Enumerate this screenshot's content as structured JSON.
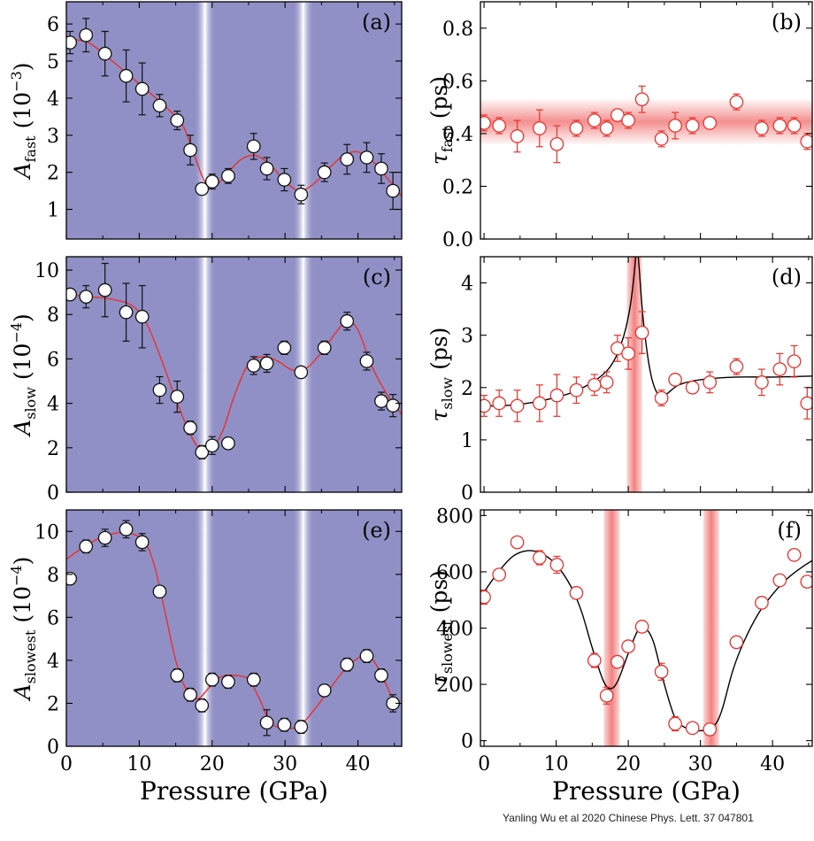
{
  "credit": "Yanling Wu et al 2020 Chinese Phys. Lett. 37 047801",
  "colors": {
    "panel_bg": "#9090c6",
    "stripe_core": "#ffffff",
    "red_line": "#e8312c",
    "red_band": "#f06b6b",
    "marker_edge_left": "#111111",
    "marker_edge_right": "#e8312c",
    "fit_right": "#000000"
  },
  "chart_data": [
    {
      "panel": "(a)",
      "type": "scatter",
      "ylabel_main": "A",
      "ylabel_sub": "fast",
      "ylabel_unit": "(10",
      "ylabel_exp": "−3",
      "ylabel_close": ")",
      "xlim": [
        0,
        46
      ],
      "ylim": [
        0.2,
        6.6
      ],
      "yticks": [
        1,
        2,
        3,
        4,
        5,
        6
      ],
      "xticks": [
        0,
        10,
        20,
        30,
        40
      ],
      "background": "blue",
      "stripes": [
        19.0,
        32.5
      ],
      "x": [
        0.5,
        2.7,
        5.3,
        8.2,
        10.4,
        12.8,
        15.2,
        17.0,
        18.6,
        20.0,
        22.2,
        25.7,
        27.5,
        29.9,
        32.2,
        35.4,
        38.5,
        41.2,
        43.2,
        44.8
      ],
      "y": [
        5.5,
        5.7,
        5.2,
        4.6,
        4.25,
        3.8,
        3.4,
        2.6,
        1.55,
        1.75,
        1.9,
        2.7,
        2.1,
        1.8,
        1.4,
        2.0,
        2.35,
        2.4,
        2.1,
        1.5
      ],
      "err": [
        0.3,
        0.45,
        0.6,
        0.7,
        0.7,
        0.3,
        0.25,
        0.4,
        0.15,
        0.2,
        0.2,
        0.35,
        0.3,
        0.3,
        0.25,
        0.25,
        0.4,
        0.4,
        0.4,
        0.5
      ],
      "fit": {
        "color": "red",
        "x": [
          0,
          3,
          6,
          9,
          12,
          14,
          16,
          17.5,
          19,
          20.5,
          22,
          24,
          26,
          28,
          30,
          32,
          34,
          36,
          38,
          40,
          42,
          44,
          46
        ],
        "y": [
          5.6,
          5.5,
          5.05,
          4.55,
          4.05,
          3.7,
          3.25,
          2.5,
          1.75,
          1.65,
          1.95,
          2.35,
          2.45,
          2.2,
          1.75,
          1.5,
          1.7,
          2.1,
          2.45,
          2.55,
          2.3,
          1.85,
          1.35
        ]
      }
    },
    {
      "panel": "(b)",
      "type": "scatter",
      "ylabel_main": "τ",
      "ylabel_sub": "fast",
      "ylabel_unit": "(ps)",
      "ylabel_exp": "",
      "ylabel_close": "",
      "xlim": [
        -0.5,
        45.5
      ],
      "ylim": [
        0,
        0.9
      ],
      "yticks": [
        0.0,
        0.2,
        0.4,
        0.6,
        0.8
      ],
      "ytick_labels": [
        "0.0",
        "0.2",
        "0.4",
        "0.6",
        "0.8"
      ],
      "xticks": [
        0,
        10,
        20,
        30,
        40
      ],
      "background": "white",
      "hband": [
        0.36,
        0.53
      ],
      "x": [
        0,
        2.1,
        4.6,
        7.7,
        10.1,
        12.8,
        15.3,
        17.0,
        18.5,
        20.0,
        21.9,
        24.6,
        26.5,
        28.9,
        31.3,
        35.0,
        38.5,
        41.0,
        43.0,
        44.8
      ],
      "y": [
        0.44,
        0.43,
        0.39,
        0.42,
        0.36,
        0.42,
        0.45,
        0.42,
        0.47,
        0.45,
        0.53,
        0.38,
        0.43,
        0.43,
        0.44,
        0.52,
        0.42,
        0.43,
        0.43,
        0.37
      ],
      "err": [
        0.03,
        0.03,
        0.06,
        0.07,
        0.07,
        0.03,
        0.03,
        0.03,
        0.02,
        0.03,
        0.05,
        0.03,
        0.05,
        0.03,
        0.02,
        0.03,
        0.03,
        0.03,
        0.03,
        0.03
      ]
    },
    {
      "panel": "(c)",
      "type": "scatter",
      "ylabel_main": "A",
      "ylabel_sub": "slow",
      "ylabel_unit": "(10",
      "ylabel_exp": "−4",
      "ylabel_close": ")",
      "xlim": [
        0,
        46
      ],
      "ylim": [
        0,
        10.6
      ],
      "yticks": [
        0,
        2,
        4,
        6,
        8,
        10
      ],
      "xticks": [
        0,
        10,
        20,
        30,
        40
      ],
      "background": "blue",
      "stripes": [
        19.0,
        32.5
      ],
      "x": [
        0.5,
        2.7,
        5.3,
        8.2,
        10.4,
        12.8,
        15.2,
        17.0,
        18.6,
        20.0,
        22.2,
        25.7,
        27.5,
        29.9,
        32.2,
        35.4,
        38.5,
        41.2,
        43.2,
        44.8
      ],
      "y": [
        8.9,
        8.8,
        9.1,
        8.1,
        7.9,
        4.6,
        4.3,
        2.9,
        1.8,
        2.1,
        2.2,
        5.7,
        5.8,
        6.5,
        5.4,
        6.5,
        7.7,
        5.9,
        4.1,
        3.9
      ],
      "err": [
        0.25,
        0.5,
        1.2,
        1.3,
        1.4,
        0.6,
        0.7,
        0.3,
        0.3,
        0.4,
        0.25,
        0.4,
        0.4,
        0.3,
        0.2,
        0.3,
        0.4,
        0.4,
        0.4,
        0.5
      ],
      "fit": {
        "color": "red",
        "x": [
          0,
          3,
          6,
          9,
          11,
          13,
          15,
          17,
          18.5,
          20,
          21.5,
          23,
          25,
          27,
          29,
          31,
          33,
          35,
          37,
          38.5,
          40,
          42,
          44,
          46
        ],
        "y": [
          8.9,
          8.8,
          8.7,
          8.4,
          7.6,
          6.0,
          4.2,
          2.6,
          1.9,
          2.0,
          2.8,
          4.3,
          5.8,
          6.1,
          5.9,
          5.5,
          5.6,
          6.3,
          7.2,
          7.7,
          7.3,
          5.6,
          4.4,
          3.5
        ]
      }
    },
    {
      "panel": "(d)",
      "type": "scatter",
      "ylabel_main": "τ",
      "ylabel_sub": "slow",
      "ylabel_unit": "(ps)",
      "ylabel_exp": "",
      "ylabel_close": "",
      "xlim": [
        -0.5,
        45.5
      ],
      "ylim": [
        0,
        4.5
      ],
      "yticks": [
        0,
        1,
        2,
        3,
        4
      ],
      "xticks": [
        0,
        10,
        20,
        30,
        40
      ],
      "background": "white",
      "vbands": [
        [
          19.8,
          21.9
        ]
      ],
      "x": [
        0,
        2.1,
        4.6,
        7.7,
        10.1,
        12.8,
        15.3,
        17.0,
        18.5,
        20.0,
        21.9,
        24.6,
        26.5,
        28.9,
        31.3,
        35.0,
        38.5,
        41.0,
        43.0,
        44.8
      ],
      "y": [
        1.65,
        1.7,
        1.65,
        1.7,
        1.85,
        1.95,
        2.05,
        2.1,
        2.75,
        2.65,
        3.05,
        1.8,
        2.15,
        2.0,
        2.1,
        2.4,
        2.1,
        2.35,
        2.5,
        1.7
      ],
      "err": [
        0.2,
        0.25,
        0.3,
        0.35,
        0.4,
        0.25,
        0.2,
        0.2,
        0.25,
        0.3,
        0.4,
        0.15,
        0.1,
        0.1,
        0.2,
        0.15,
        0.25,
        0.3,
        0.3,
        0.3
      ],
      "fit": {
        "color": "black",
        "x": [
          -0.5,
          2,
          5,
          8,
          11,
          13,
          15,
          16.5,
          17.5,
          18.5,
          19.5,
          20.2,
          20.6,
          20.9,
          21.1,
          21.3,
          21.5,
          21.7,
          22.0,
          22.4,
          22.8,
          23.3,
          24,
          25,
          27,
          30,
          35,
          40,
          45.5
        ],
        "y": [
          1.65,
          1.65,
          1.68,
          1.75,
          1.85,
          1.95,
          2.1,
          2.25,
          2.4,
          2.65,
          3.05,
          3.5,
          3.9,
          4.3,
          4.6,
          4.6,
          4.3,
          3.9,
          3.4,
          2.9,
          2.5,
          2.15,
          1.9,
          1.85,
          2.05,
          2.15,
          2.2,
          2.2,
          2.22
        ]
      }
    },
    {
      "panel": "(e)",
      "type": "scatter",
      "ylabel_main": "A",
      "ylabel_sub": "slowest",
      "ylabel_unit": "(10",
      "ylabel_exp": "−4",
      "ylabel_close": ")",
      "xlim": [
        0,
        46
      ],
      "ylim": [
        0,
        11
      ],
      "yticks": [
        0,
        2,
        4,
        6,
        8,
        10
      ],
      "xticks": [
        0,
        10,
        20,
        30,
        40
      ],
      "background": "blue",
      "stripes": [
        19.0,
        32.5
      ],
      "xlabel": "Pressure (GPa)",
      "x": [
        0.5,
        2.7,
        5.3,
        8.2,
        10.4,
        12.8,
        15.2,
        17.0,
        18.6,
        20.0,
        22.2,
        25.7,
        27.5,
        29.9,
        32.2,
        35.4,
        38.5,
        41.2,
        43.2,
        44.8
      ],
      "y": [
        7.8,
        9.3,
        9.7,
        10.1,
        9.5,
        7.2,
        3.3,
        2.4,
        1.9,
        3.1,
        3.0,
        3.1,
        1.1,
        1.0,
        0.9,
        2.6,
        3.8,
        4.2,
        3.3,
        2.0
      ],
      "err": [
        0.2,
        0.3,
        0.4,
        0.4,
        0.4,
        0.2,
        0.3,
        0.3,
        0.3,
        0.3,
        0.3,
        0.3,
        0.6,
        0.3,
        0.3,
        0.2,
        0.3,
        0.3,
        0.3,
        0.4
      ],
      "fit": {
        "color": "red",
        "x": [
          0,
          2.5,
          5,
          8,
          10.5,
          12,
          13.5,
          15,
          16.5,
          18,
          19.5,
          21,
          23,
          25,
          26.5,
          28,
          30,
          32,
          34,
          36,
          38,
          40,
          41.5,
          43,
          45
        ],
        "y": [
          8.7,
          9.3,
          9.75,
          9.95,
          9.6,
          8.5,
          6.3,
          4.0,
          2.6,
          2.2,
          2.7,
          3.2,
          3.3,
          3.1,
          2.2,
          1.1,
          0.85,
          0.95,
          1.7,
          2.6,
          3.5,
          4.1,
          4.2,
          3.5,
          2.0
        ]
      }
    },
    {
      "panel": "(f)",
      "type": "scatter",
      "ylabel_main": "τ",
      "ylabel_sub": "slowest",
      "ylabel_unit": "(ps)",
      "ylabel_exp": "",
      "ylabel_close": "",
      "xlim": [
        -0.5,
        45.5
      ],
      "ylim": [
        -20,
        820
      ],
      "yticks": [
        0,
        200,
        400,
        600,
        800
      ],
      "xticks": [
        0,
        10,
        20,
        30,
        40
      ],
      "background": "white",
      "vbands": [
        [
          16.6,
          18.8
        ],
        [
          30.4,
          32.6
        ]
      ],
      "xlabel": "Pressure (GPa)",
      "x": [
        0,
        2.1,
        4.6,
        7.7,
        10.1,
        12.8,
        15.3,
        17.0,
        18.5,
        20.0,
        21.9,
        24.6,
        26.5,
        28.9,
        31.3,
        35.0,
        38.5,
        41.0,
        43.0,
        44.8
      ],
      "y": [
        510,
        590,
        705,
        650,
        625,
        525,
        285,
        160,
        280,
        335,
        405,
        245,
        60,
        45,
        40,
        350,
        490,
        570,
        660,
        565
      ],
      "err": [
        25,
        15,
        20,
        25,
        30,
        20,
        25,
        30,
        15,
        15,
        15,
        30,
        25,
        20,
        10,
        20,
        15,
        10,
        10,
        10
      ],
      "fit": {
        "color": "black",
        "x": [
          -0.5,
          2,
          4,
          6,
          8,
          10,
          12,
          13.5,
          15,
          16.5,
          17.5,
          18.5,
          20,
          21.3,
          22.3,
          23.5,
          25,
          26.5,
          28,
          29.5,
          31,
          32,
          33,
          34.5,
          36,
          38,
          40,
          42,
          44,
          45.5
        ],
        "y": [
          510,
          600,
          655,
          675,
          665,
          625,
          550,
          460,
          330,
          215,
          185,
          210,
          310,
          390,
          400,
          350,
          200,
          80,
          45,
          35,
          40,
          55,
          110,
          250,
          350,
          450,
          520,
          575,
          615,
          640
        ]
      }
    }
  ]
}
